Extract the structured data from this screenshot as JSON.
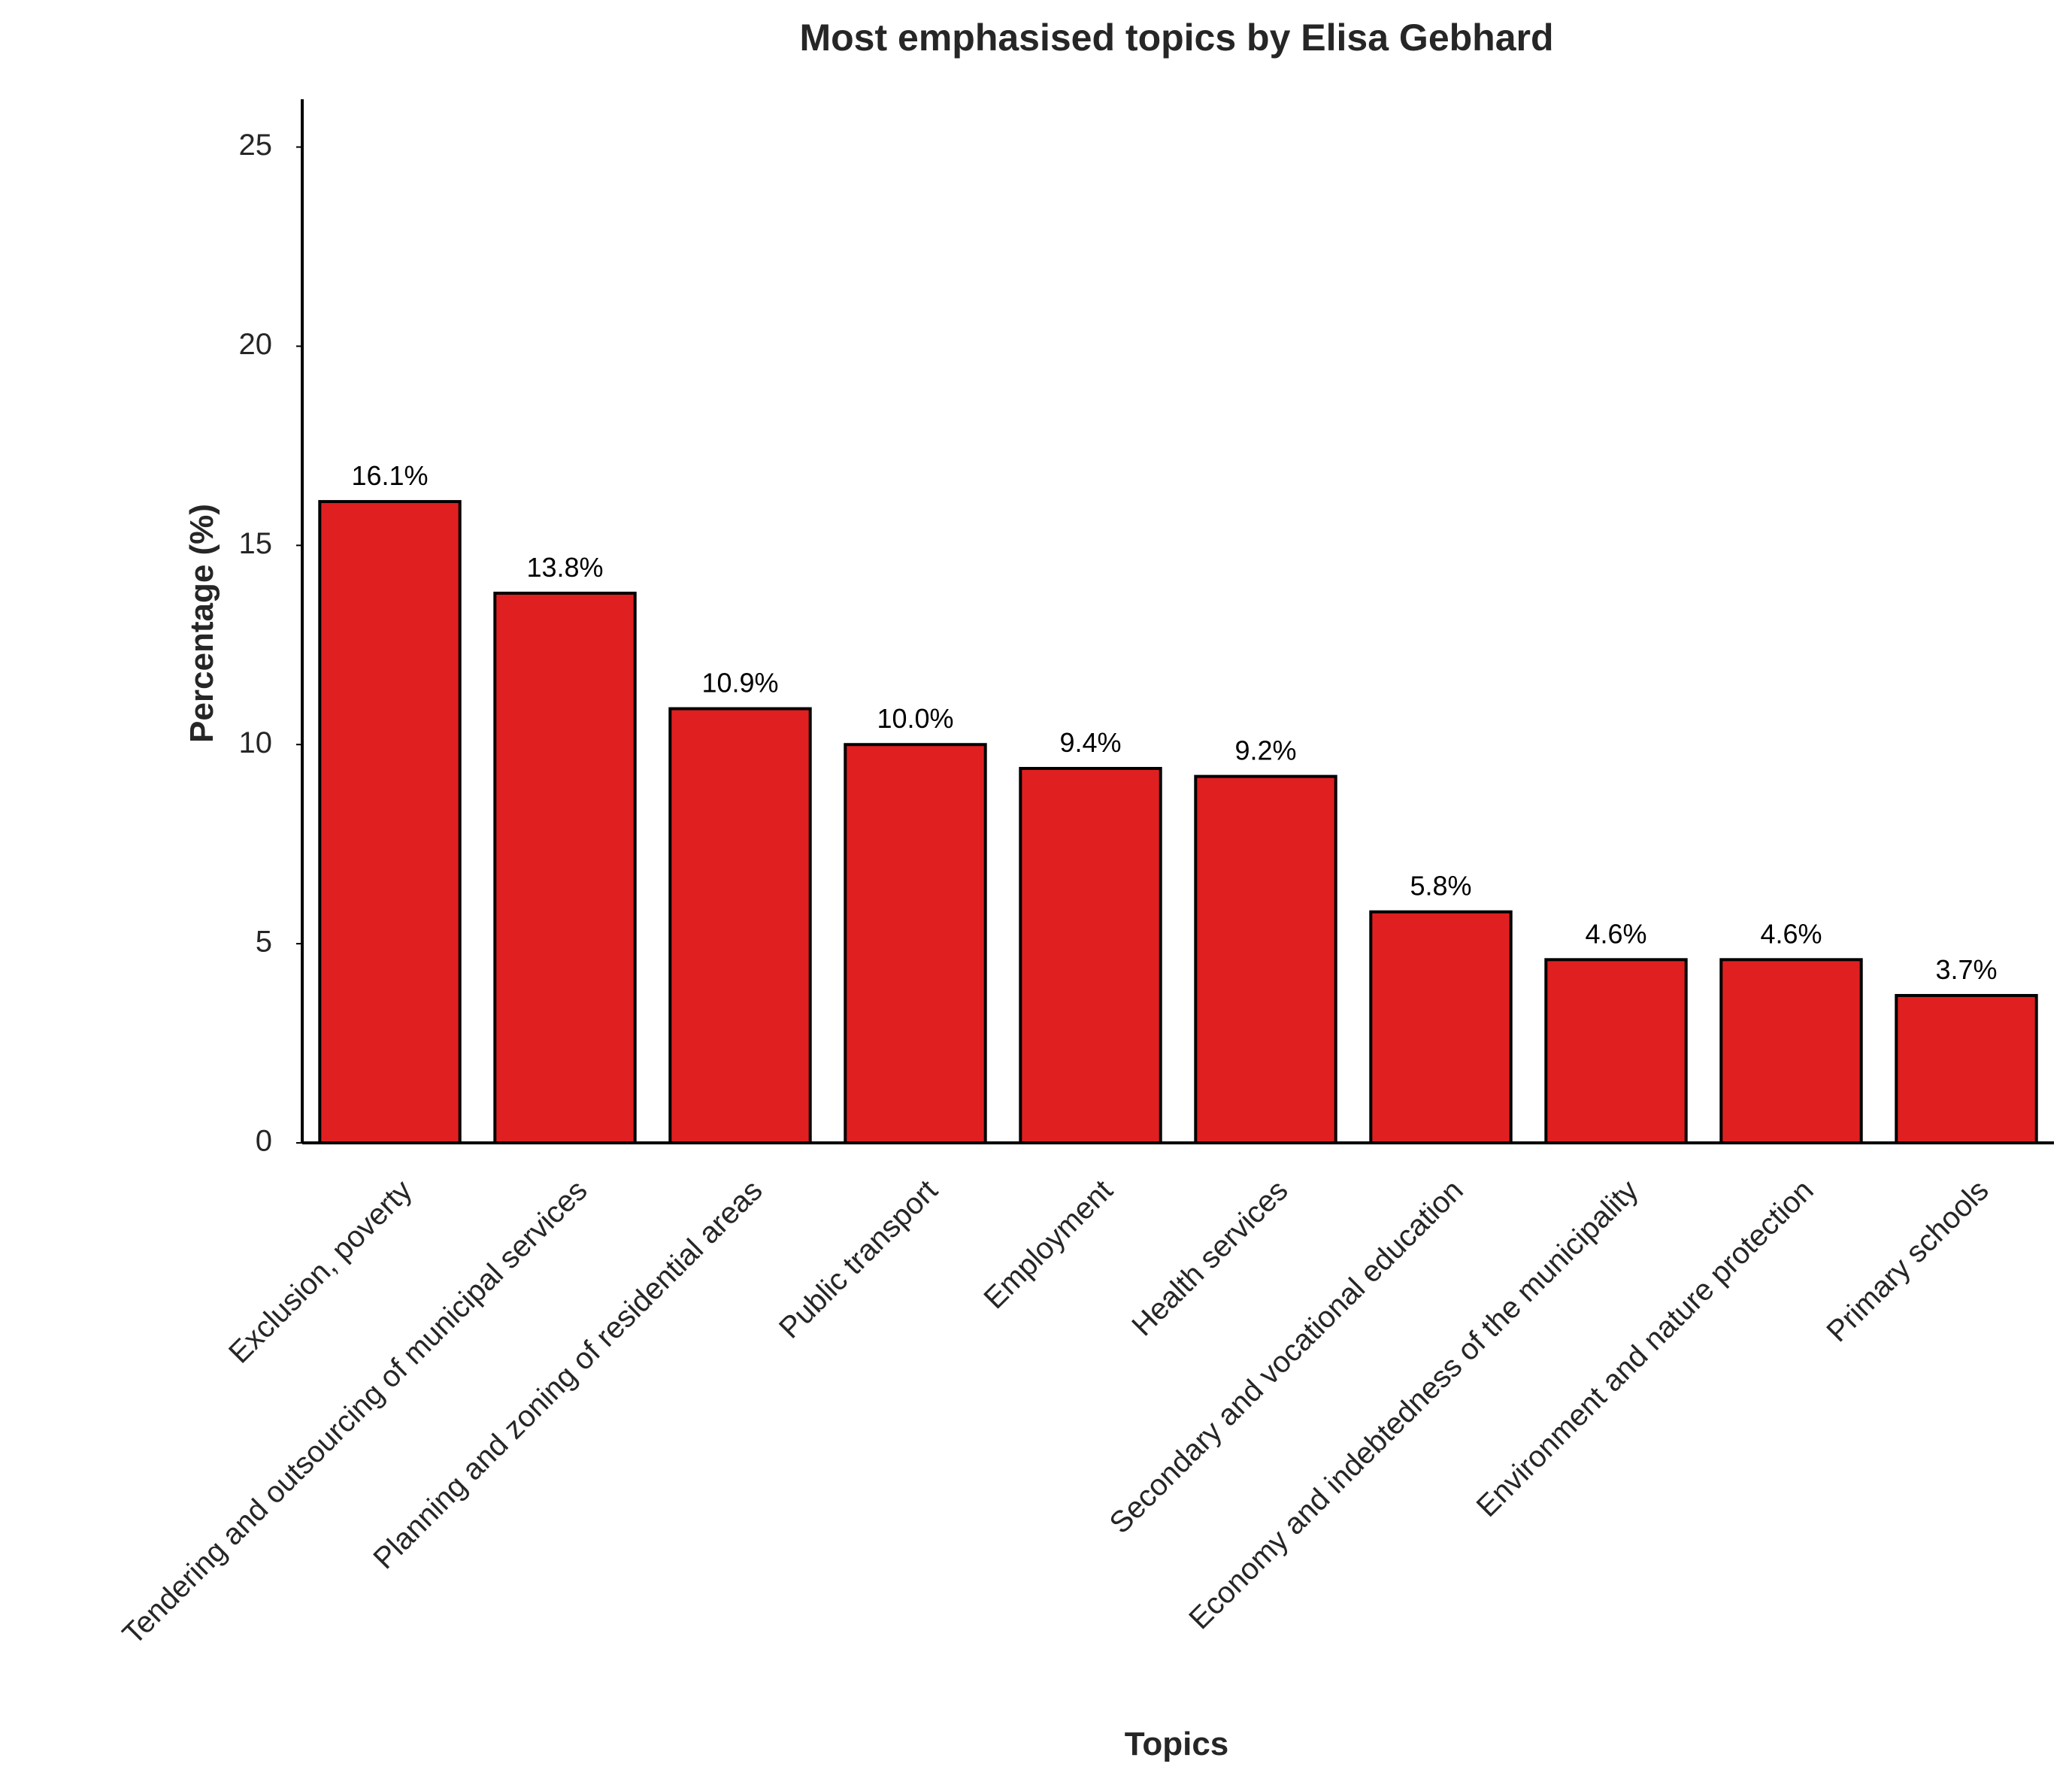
{
  "chart_data": {
    "type": "bar",
    "title": "Most emphasised topics by Elisa Gebhard",
    "xlabel": "Topics",
    "ylabel": "Percentage (%)",
    "categories": [
      "Exclusion, poverty",
      "Tendering and outsourcing of municipal services",
      "Planning and zoning of residential areas",
      "Public transport",
      "Employment",
      "Health services",
      "Secondary and vocational education",
      "Economy and indebtedness of the municipality",
      "Environment and nature protection",
      "Primary schools"
    ],
    "values": [
      16.1,
      13.8,
      10.9,
      10.0,
      9.4,
      9.2,
      5.8,
      4.6,
      4.6,
      3.7
    ],
    "value_labels": [
      "16.1%",
      "13.8%",
      "10.9%",
      "10.0%",
      "9.4%",
      "9.2%",
      "5.8%",
      "4.6%",
      "4.6%",
      "3.7%"
    ],
    "ylim": [
      0,
      26.2
    ],
    "yticks": [
      0,
      5,
      10,
      15,
      20,
      25
    ],
    "ytick_labels": [
      "0",
      "5",
      "10",
      "15",
      "20",
      "25"
    ],
    "grid": false,
    "legend": "none",
    "bar_color": "#e02020",
    "bar_edge_color": "#000000"
  }
}
